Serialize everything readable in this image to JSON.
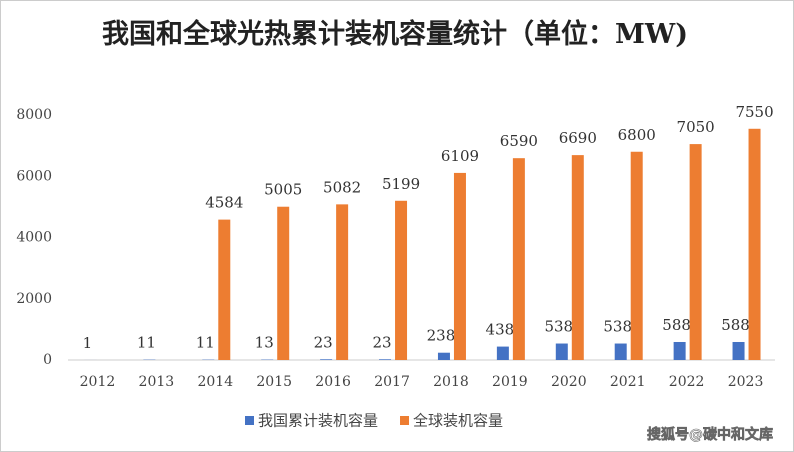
{
  "chart_data": {
    "type": "bar",
    "title": "我国和全球光热累计装机容量统计（单位：MW)",
    "categories": [
      "2012",
      "2013",
      "2014",
      "2015",
      "2016",
      "2017",
      "2018",
      "2019",
      "2020",
      "2021",
      "2022",
      "2023"
    ],
    "series": [
      {
        "name": "我国累计装机容量",
        "color": "#4472c4",
        "values": [
          1,
          11,
          11,
          13,
          23,
          23,
          238,
          438,
          538,
          538,
          588,
          588
        ]
      },
      {
        "name": "全球装机容量",
        "color": "#ed7d31",
        "values": [
          null,
          null,
          4584,
          5005,
          5082,
          5199,
          6109,
          6590,
          6690,
          6800,
          7050,
          7550
        ]
      }
    ],
    "ylim": [
      0,
      8000
    ],
    "yticks": [
      0,
      2000,
      4000,
      6000,
      8000
    ],
    "grid": false,
    "legend": "bottom",
    "watermark": "搜狐号@碳中和文库"
  }
}
